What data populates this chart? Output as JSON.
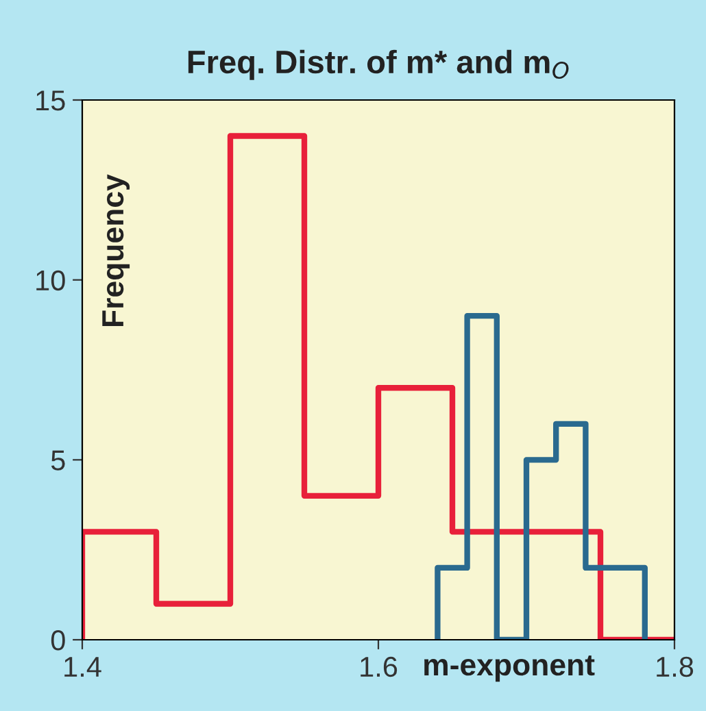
{
  "chart_data": {
    "type": "step",
    "title": "Freq. Distr. of m* and m$_{O}$",
    "xlabel": "m-exponent",
    "ylabel": "Frequency",
    "series": [
      {
        "color": "#e8203a",
        "x": [
          1.4,
          1.4,
          1.45,
          1.5,
          1.55,
          1.6,
          1.65,
          1.7,
          1.75,
          1.8
        ],
        "values": [
          0,
          3,
          1,
          14,
          4,
          7,
          3,
          3,
          0,
          0
        ]
      },
      {
        "color": "#2a6a8f",
        "x": [
          1.64,
          1.64,
          1.66,
          1.68,
          1.7,
          1.72,
          1.74,
          1.76,
          1.78
        ],
        "values": [
          0,
          2,
          9,
          0,
          5,
          6,
          2,
          2,
          0
        ]
      }
    ],
    "xlim": [
      1.4,
      1.8
    ],
    "xticks": [
      {
        "value": 1.4,
        "label": "1.4"
      },
      {
        "value": 1.6,
        "label": "1.6"
      },
      {
        "value": 1.8,
        "label": "1.8"
      }
    ],
    "ylim": [
      0,
      15
    ],
    "yticks": [
      0,
      5,
      10,
      15
    ],
    "grid": false,
    "legend": false
  }
}
